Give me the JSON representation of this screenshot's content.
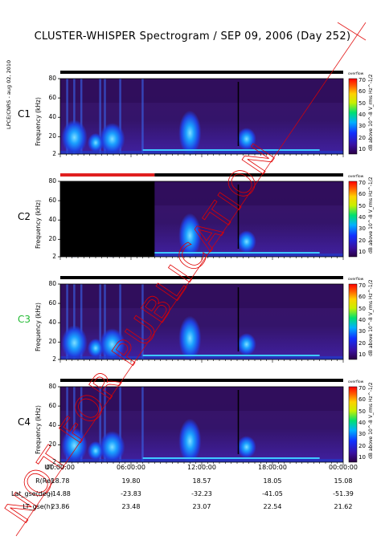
{
  "title": "CLUSTER-WHISPER Spectrogram / SEP 09, 2006 (Day 252)",
  "credit": "LPCE/CNRS - aug 02, 2010",
  "watermark": "NOT FOR PUBLICATION",
  "colors": {
    "background": "#2a0a44",
    "watermark": "#e00000",
    "status_ok": "#000000",
    "status_bad": "#e02020"
  },
  "colorbar": {
    "top_label": "overflow",
    "unit": "dB above 10^-8 V_rms Hz^-1/2",
    "ticks": [
      "70",
      "60",
      "50",
      "40",
      "30",
      "20",
      "10"
    ]
  },
  "chart_data": [
    {
      "type": "heatmap",
      "panel": "C1",
      "label_color": "#000000",
      "ylabel": "Frequency (kHz)",
      "yticks": [
        "80",
        "60",
        "40",
        "20",
        "2"
      ],
      "ylim": [
        2,
        80
      ],
      "status_bar": [
        {
          "from": "00:00",
          "to": "24:00",
          "state": "ok"
        }
      ]
    },
    {
      "type": "heatmap",
      "panel": "C2",
      "label_color": "#000000",
      "ylabel": "Frequency (kHz)",
      "yticks": [
        "80",
        "60",
        "40",
        "20",
        "2"
      ],
      "ylim": [
        2,
        80
      ],
      "no_data": {
        "from": "00:00",
        "to": "08:00"
      },
      "status_bar": [
        {
          "from": "00:00",
          "to": "08:00",
          "state": "bad"
        },
        {
          "from": "08:00",
          "to": "24:00",
          "state": "ok"
        }
      ]
    },
    {
      "type": "heatmap",
      "panel": "C3",
      "label_color": "#22bb33",
      "ylabel": "Frequency (kHz)",
      "yticks": [
        "80",
        "60",
        "40",
        "20",
        "2"
      ],
      "ylim": [
        2,
        80
      ],
      "status_bar": [
        {
          "from": "00:00",
          "to": "24:00",
          "state": "ok"
        }
      ]
    },
    {
      "type": "heatmap",
      "panel": "C4",
      "label_color": "#000000",
      "ylabel": "Frequency (kHz)",
      "yticks": [
        "80",
        "60",
        "40",
        "20",
        "2"
      ],
      "ylim": [
        2,
        80
      ],
      "status_bar": [
        {
          "from": "00:00",
          "to": "24:00",
          "state": "ok"
        }
      ]
    }
  ],
  "ephemeris": {
    "labels": [
      "UT",
      "R(Re)",
      "Lat_gse(deg)",
      "LT_gse(h)"
    ],
    "columns": [
      {
        "UT": "00:00:00",
        "R": "18.78",
        "Lat": "-14.88",
        "LT": "23.86"
      },
      {
        "UT": "06:00:00",
        "R": "19.80",
        "Lat": "-23.83",
        "LT": "23.48"
      },
      {
        "UT": "12:00:00",
        "R": "18.57",
        "Lat": "-32.23",
        "LT": "23.07"
      },
      {
        "UT": "18:00:00",
        "R": "18.05",
        "Lat": "-41.05",
        "LT": "22.54"
      },
      {
        "UT": "00:00:00",
        "R": "15.08",
        "Lat": "-51.39",
        "LT": "21.62"
      }
    ]
  }
}
